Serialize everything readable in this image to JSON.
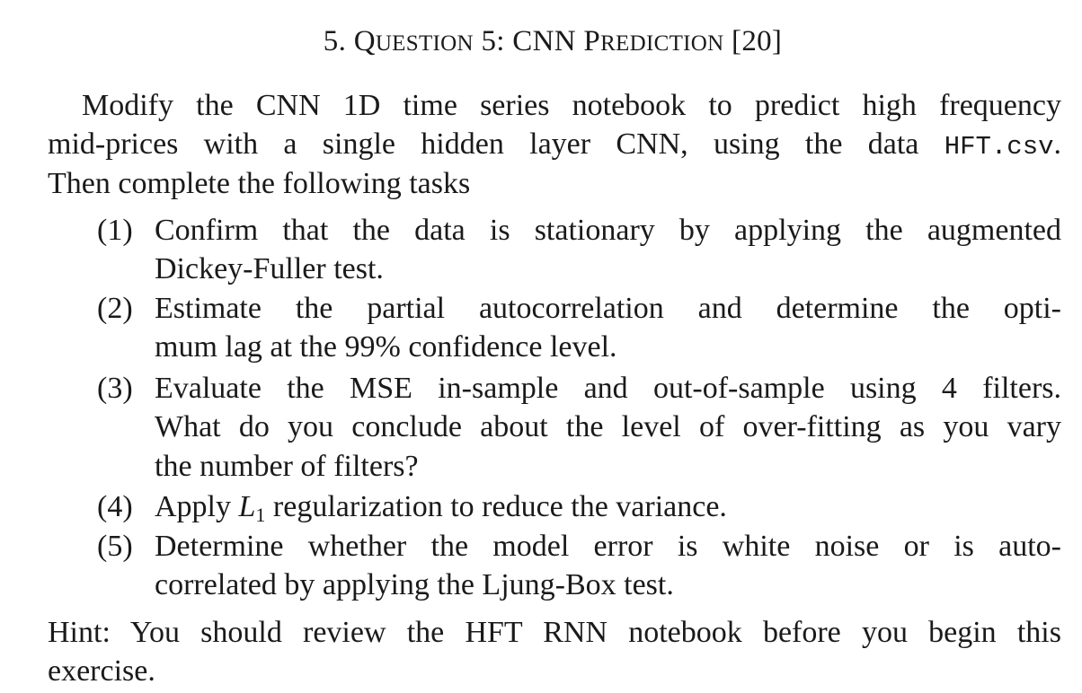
{
  "heading": {
    "number": "5.",
    "word_q": "Q",
    "word_uestion": "uestion",
    "qnum": "5:",
    "cnn": "CNN",
    "word_p": "P",
    "word_rediction": "rediction",
    "marks": "[20]"
  },
  "intro": {
    "line1": "Modify the CNN 1D time series notebook to predict high frequency",
    "line2_pre": "mid-prices with a single hidden layer CNN, using the data",
    "line2_code": "HFT.csv",
    "line2_post": ".",
    "line3": "Then complete the following tasks"
  },
  "tasks": [
    {
      "num": "(1)",
      "lines": [
        "Confirm that the data is stationary by applying the augmented",
        "Dickey-Fuller test."
      ]
    },
    {
      "num": "(2)",
      "lines": [
        "Estimate the partial autocorrelation and determine the opti-",
        "mum lag at the 99% confidence level."
      ]
    },
    {
      "num": "(3)",
      "lines": [
        "Evaluate the MSE in-sample and out-of-sample using 4 filters.",
        "What do you conclude about the level of over-fitting as you vary",
        "the number of filters?"
      ]
    },
    {
      "num": "(4)",
      "pre": "Apply",
      "math_base": "L",
      "math_sub": "1",
      "post": "regularization to reduce the variance."
    },
    {
      "num": "(5)",
      "lines": [
        "Determine whether the model error is white noise or is auto-",
        "correlated by applying the Ljung-Box test."
      ]
    }
  ],
  "hint": {
    "line1": "Hint: You should review the HFT RNN notebook before you begin this",
    "line2": "exercise."
  }
}
